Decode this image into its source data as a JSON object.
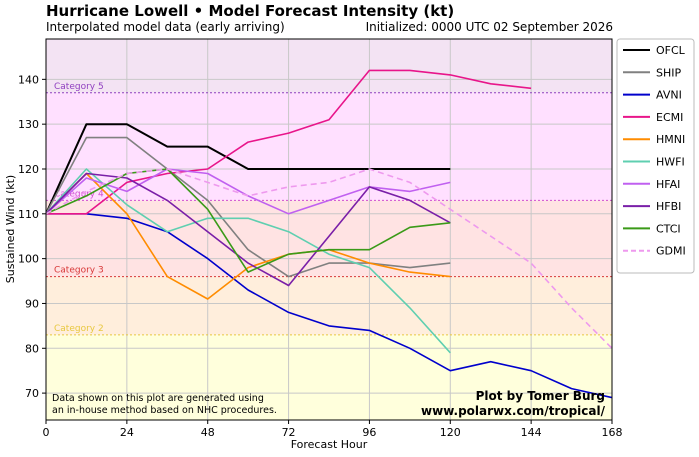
{
  "header": {
    "title": "Hurricane Lowell • Model Forecast Intensity (kt)",
    "subtitle": "Interpolated model data (early arriving)",
    "initialized": "Initialized: 0000 UTC 02 September 2026"
  },
  "credit": {
    "line1": "Plot by Tomer Burg",
    "line2": "www.polarwx.com/tropical/"
  },
  "note": {
    "line1": "Data shown on this plot are generated using",
    "line2": "an in-house method based on NHC procedures."
  },
  "chart_data": {
    "type": "line",
    "xlabel": "Forecast Hour",
    "ylabel": "Sustained Wind (kt)",
    "xlim": [
      0,
      168
    ],
    "ylim": [
      64,
      149
    ],
    "xticks": [
      0,
      24,
      48,
      72,
      96,
      120,
      144,
      168
    ],
    "yticks": [
      70,
      80,
      90,
      100,
      110,
      120,
      130,
      140
    ],
    "grid": true,
    "legend": "outside-right",
    "bands": [
      {
        "from": 64,
        "to": 83,
        "color": "#ffffdc"
      },
      {
        "from": 83,
        "to": 96,
        "color": "#ffeedc"
      },
      {
        "from": 96,
        "to": 113,
        "color": "#ffe3e3"
      },
      {
        "from": 113,
        "to": 137,
        "color": "#ffe0ff"
      },
      {
        "from": 137,
        "to": 149,
        "color": "#f3e3f3"
      }
    ],
    "thresholds": [
      {
        "label": "Category 2",
        "value": 83,
        "color": "#e8c840"
      },
      {
        "label": "Category 3",
        "value": 96,
        "color": "#d83838"
      },
      {
        "label": "Category 4",
        "value": 113,
        "color": "#d050d0"
      },
      {
        "label": "Category 5",
        "value": 137,
        "color": "#9040c0"
      }
    ],
    "series": [
      {
        "name": "OFCL",
        "color": "#000000",
        "dash": false,
        "x": [
          0,
          12,
          24,
          36,
          48,
          60,
          72,
          84,
          96,
          108,
          120
        ],
        "y": [
          110,
          130,
          130,
          125,
          125,
          120,
          120,
          120,
          120,
          120,
          120
        ]
      },
      {
        "name": "SHIP",
        "color": "#808080",
        "dash": false,
        "x": [
          0,
          12,
          24,
          36,
          48,
          60,
          72,
          84,
          96,
          108,
          120
        ],
        "y": [
          110,
          127,
          127,
          120,
          113,
          102,
          96,
          99,
          99,
          98,
          99
        ]
      },
      {
        "name": "AVNI",
        "color": "#0000cc",
        "dash": false,
        "x": [
          0,
          12,
          24,
          36,
          48,
          60,
          72,
          84,
          96,
          108,
          120,
          132,
          144,
          156,
          168
        ],
        "y": [
          110,
          110,
          109,
          106,
          100,
          93,
          88,
          85,
          84,
          80,
          75,
          77,
          75,
          71,
          69
        ]
      },
      {
        "name": "ECMI",
        "color": "#e8158a",
        "dash": false,
        "x": [
          0,
          12,
          24,
          36,
          48,
          60,
          72,
          84,
          96,
          108,
          120,
          132,
          144
        ],
        "y": [
          110,
          110,
          117,
          119,
          120,
          126,
          128,
          131,
          142,
          142,
          141,
          139,
          138
        ]
      },
      {
        "name": "HMNI",
        "color": "#ff8c00",
        "dash": false,
        "x": [
          0,
          12,
          24,
          36,
          48,
          60,
          72,
          84,
          96,
          108,
          120
        ],
        "y": [
          110,
          119,
          110,
          96,
          91,
          98,
          101,
          102,
          99,
          97,
          96
        ]
      },
      {
        "name": "HWFI",
        "color": "#5fcfb0",
        "dash": false,
        "x": [
          0,
          12,
          24,
          36,
          48,
          60,
          72,
          84,
          96,
          108,
          120
        ],
        "y": [
          110,
          120,
          112,
          106,
          109,
          109,
          106,
          101,
          98,
          89,
          79
        ]
      },
      {
        "name": "HFAI",
        "color": "#c060f0",
        "dash": false,
        "x": [
          0,
          12,
          24,
          36,
          48,
          60,
          72,
          84,
          96,
          108,
          120
        ],
        "y": [
          110,
          118,
          115,
          120,
          119,
          114,
          110,
          113,
          116,
          115,
          117
        ]
      },
      {
        "name": "HFBI",
        "color": "#7a1fa8",
        "dash": false,
        "x": [
          0,
          12,
          24,
          36,
          48,
          60,
          72,
          84,
          96,
          108,
          120
        ],
        "y": [
          110,
          119,
          118,
          113,
          106,
          99,
          94,
          105,
          116,
          113,
          108
        ]
      },
      {
        "name": "CTCI",
        "color": "#3a9a18",
        "dash": false,
        "x": [
          0,
          12,
          24,
          36,
          48,
          60,
          72,
          84,
          96,
          108,
          120
        ],
        "y": [
          110,
          114,
          119,
          120,
          111,
          97,
          101,
          102,
          102,
          107,
          108
        ]
      },
      {
        "name": "GDMI",
        "color": "#ee99ee",
        "dash": true,
        "x": [
          0,
          12,
          24,
          36,
          48,
          60,
          72,
          84,
          96,
          108,
          120,
          132,
          144,
          156,
          168
        ],
        "y": [
          110,
          115,
          119,
          120,
          117,
          114,
          116,
          117,
          120,
          117,
          111,
          105,
          99,
          89,
          80
        ]
      }
    ]
  }
}
